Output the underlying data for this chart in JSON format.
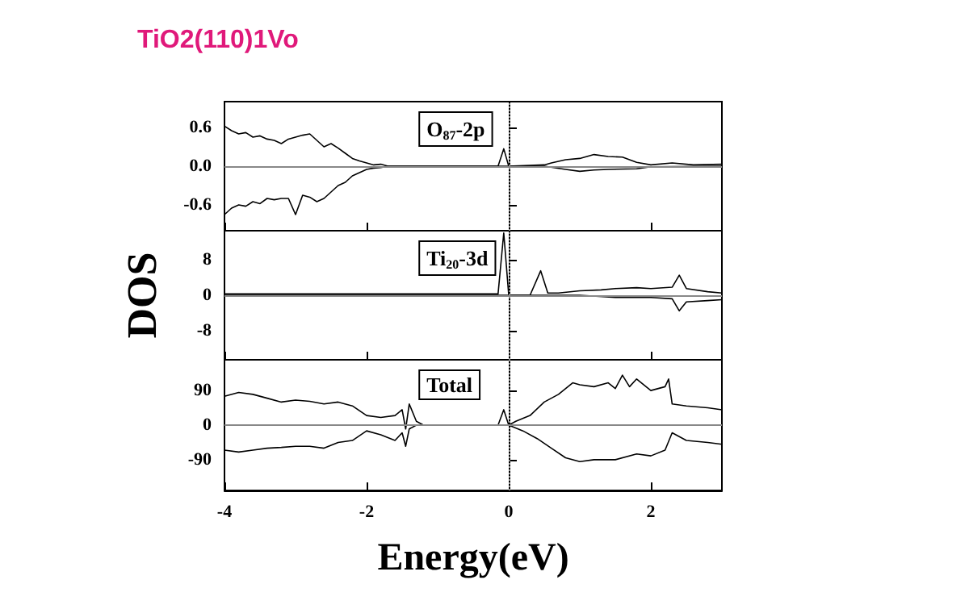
{
  "chart_data": [
    {
      "type": "line",
      "title": "TiO2(110)1Vo",
      "annotations": [
        "O$_{87}$-2p"
      ],
      "xlim": [
        -4,
        3
      ],
      "xticks": [
        -4,
        -2,
        0,
        2
      ],
      "ylim": [
        -1,
        1
      ],
      "yticks": [
        0.6,
        {
          "value": 0,
          "label": "0.0"
        },
        -0.6
      ],
      "tick_labels": "y",
      "grid": false,
      "marker": "none",
      "line_style": "solid",
      "ref_lines": [
        {
          "axis": "y",
          "value": 0,
          "color": "#888888",
          "line_style": "solid"
        },
        {
          "axis": "x",
          "value": 0,
          "color": "#888888",
          "line_style": "dotted"
        }
      ],
      "series": [
        {
          "color": "#000000",
          "x": [
            -4,
            -3.9,
            -3.8,
            -3.7,
            -3.6,
            -3.5,
            -3.4,
            -3.3,
            -3.2,
            -3.1,
            -3.0,
            -2.9,
            -2.8,
            -2.7,
            -2.6,
            -2.5,
            -2.4,
            -2.3,
            -2.2,
            -2.1,
            -2.0,
            -1.9,
            -1.8,
            -1.7,
            -1.0,
            -0.15,
            -0.07,
            0,
            0.5,
            0.6,
            0.8,
            1.0,
            1.2,
            1.4,
            1.6,
            1.8,
            2.0,
            2.3,
            2.6,
            3.0
          ],
          "values": [
            0.62,
            0.55,
            0.5,
            0.52,
            0.45,
            0.47,
            0.42,
            0.4,
            0.35,
            0.42,
            0.45,
            0.48,
            0.5,
            0.4,
            0.3,
            0.35,
            0.28,
            0.2,
            0.12,
            0.08,
            0.05,
            0.02,
            0.03,
            0,
            0,
            0,
            0.27,
            0,
            0.02,
            0.05,
            0.1,
            0.12,
            0.18,
            0.15,
            0.14,
            0.06,
            0.02,
            0.05,
            0.02,
            0.03
          ]
        },
        {
          "color": "#000000",
          "x": [
            -4,
            -3.9,
            -3.8,
            -3.7,
            -3.6,
            -3.5,
            -3.4,
            -3.3,
            -3.2,
            -3.1,
            -3.0,
            -2.9,
            -2.8,
            -2.7,
            -2.6,
            -2.5,
            -2.4,
            -2.3,
            -2.2,
            -2.1,
            -2.0,
            -1.9,
            -1.8,
            -1.7,
            0.5,
            0.8,
            1.0,
            1.2,
            1.4,
            1.8,
            2.0,
            3.0
          ],
          "values": [
            -0.75,
            -0.65,
            -0.6,
            -0.62,
            -0.55,
            -0.58,
            -0.5,
            -0.52,
            -0.5,
            -0.5,
            -0.75,
            -0.45,
            -0.48,
            -0.55,
            -0.5,
            -0.4,
            -0.3,
            -0.25,
            -0.15,
            -0.1,
            -0.05,
            -0.03,
            -0.02,
            0,
            0,
            -0.05,
            -0.08,
            -0.06,
            -0.05,
            -0.04,
            -0.01,
            0
          ]
        }
      ]
    },
    {
      "type": "line",
      "ylabel": "DOS",
      "annotations": [
        "Ti$_{20}$-3d"
      ],
      "xlim": [
        -4,
        3
      ],
      "xticks": [
        -4,
        -2,
        0,
        2
      ],
      "ylim": [
        -14.5,
        14.5
      ],
      "yticks": [
        8,
        0,
        -8
      ],
      "tick_labels": "y",
      "grid": false,
      "marker": "none",
      "line_style": "solid",
      "ref_lines": [
        {
          "axis": "y",
          "value": 0,
          "color": "#888888",
          "line_style": "solid"
        },
        {
          "axis": "x",
          "value": 0,
          "color": "#888888",
          "line_style": "dotted"
        }
      ],
      "series": [
        {
          "color": "#000000",
          "x": [
            -4,
            -3,
            -2,
            -1,
            -0.15,
            -0.07,
            0,
            0.3,
            0.45,
            0.55,
            0.7,
            1.0,
            1.3,
            1.5,
            1.8,
            2.0,
            2.3,
            2.4,
            2.5,
            2.8,
            3.0
          ],
          "values": [
            0.3,
            0.3,
            0.3,
            0.3,
            0.3,
            14,
            0,
            0,
            5.5,
            0.5,
            0.5,
            1,
            1.2,
            1.5,
            1.7,
            1.5,
            1.8,
            4.5,
            1.5,
            0.8,
            0.5
          ]
        },
        {
          "color": "#000000",
          "x": [
            -4,
            1.0,
            1.5,
            2.0,
            2.3,
            2.4,
            2.5,
            2.8,
            3.0
          ],
          "values": [
            0,
            0,
            -0.5,
            -0.5,
            -0.8,
            -3.5,
            -1.5,
            -1.2,
            -1
          ]
        }
      ]
    },
    {
      "type": "line",
      "xlabel": "Energy(eV)",
      "annotations": [
        "Total"
      ],
      "xlim": [
        -4,
        3
      ],
      "xticks": [
        -4,
        -2,
        0,
        2
      ],
      "ylim": [
        -170,
        170
      ],
      "yticks": [
        90,
        0,
        -90
      ],
      "grid": false,
      "marker": "none",
      "line_style": "solid",
      "ref_lines": [
        {
          "axis": "y",
          "value": 0,
          "color": "#888888",
          "line_style": "solid"
        },
        {
          "axis": "x",
          "value": 0,
          "color": "#888888",
          "line_style": "dotted"
        }
      ],
      "series": [
        {
          "color": "#000000",
          "x": [
            -4,
            -3.8,
            -3.6,
            -3.4,
            -3.2,
            -3.0,
            -2.8,
            -2.6,
            -2.4,
            -2.2,
            -2.0,
            -1.8,
            -1.6,
            -1.5,
            -1.45,
            -1.4,
            -1.3,
            -1.2,
            -0.15,
            -0.07,
            0,
            0.1,
            0.3,
            0.5,
            0.7,
            0.9,
            1.0,
            1.2,
            1.4,
            1.5,
            1.6,
            1.7,
            1.8,
            2.0,
            2.2,
            2.25,
            2.3,
            2.5,
            2.8,
            3.0
          ],
          "values": [
            75,
            85,
            80,
            70,
            60,
            65,
            62,
            55,
            60,
            50,
            25,
            20,
            25,
            40,
            -10,
            55,
            10,
            0,
            0,
            40,
            0,
            10,
            25,
            60,
            80,
            110,
            105,
            100,
            110,
            95,
            130,
            100,
            120,
            90,
            100,
            120,
            55,
            50,
            45,
            40
          ]
        },
        {
          "color": "#000000",
          "x": [
            -4,
            -3.8,
            -3.6,
            -3.4,
            -3.2,
            -3.0,
            -2.8,
            -2.6,
            -2.4,
            -2.2,
            -2.0,
            -1.8,
            -1.6,
            -1.5,
            -1.45,
            -1.4,
            -1.3,
            0,
            0.2,
            0.4,
            0.6,
            0.8,
            1.0,
            1.2,
            1.5,
            1.8,
            2.0,
            2.2,
            2.3,
            2.5,
            2.8,
            3.0
          ],
          "values": [
            -65,
            -70,
            -65,
            -60,
            -58,
            -55,
            -55,
            -60,
            -45,
            -40,
            -15,
            -25,
            -40,
            -20,
            -55,
            -10,
            0,
            0,
            -15,
            -35,
            -60,
            -85,
            -95,
            -90,
            -90,
            -75,
            -80,
            -65,
            -20,
            -40,
            -45,
            -50
          ]
        }
      ]
    }
  ]
}
